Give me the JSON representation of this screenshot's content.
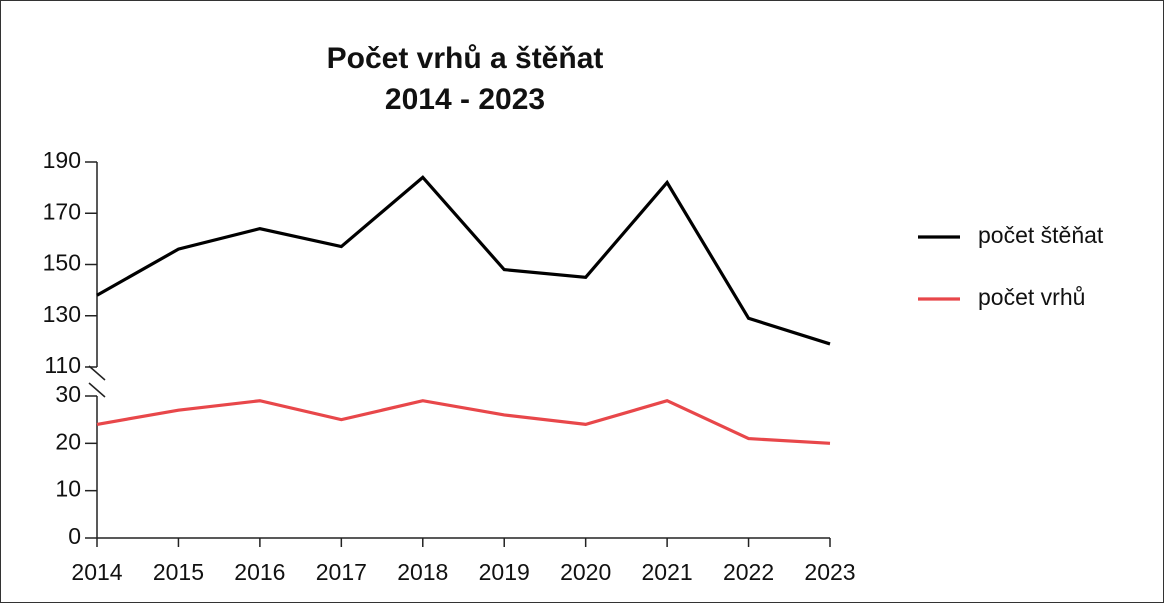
{
  "chart_data": [
    {
      "type": "line",
      "title": "Počet vrhů a štěňat",
      "subtitle": "2014 - 2023",
      "x": [
        2014,
        2015,
        2016,
        2017,
        2018,
        2019,
        2020,
        2021,
        2022,
        2023
      ],
      "series": [
        {
          "name": "počet štěňat",
          "color": "#000000",
          "values": [
            138,
            156,
            164,
            157,
            184,
            148,
            145,
            182,
            129,
            119
          ]
        }
      ],
      "xlim": [
        2014,
        2023
      ],
      "ylim": [
        110,
        190
      ],
      "yticks": [
        110,
        130,
        150,
        170,
        190
      ],
      "legend": "right"
    },
    {
      "type": "line",
      "x": [
        2014,
        2015,
        2016,
        2017,
        2018,
        2019,
        2020,
        2021,
        2022,
        2023
      ],
      "series": [
        {
          "name": "počet vrhů",
          "color": "#e8474a",
          "values": [
            24,
            27,
            29,
            25,
            29,
            26,
            24,
            29,
            21,
            20
          ]
        }
      ],
      "xlim": [
        2014,
        2023
      ],
      "ylim": [
        0,
        30
      ],
      "yticks": [
        0,
        10,
        20,
        30
      ],
      "xticks": [
        2014,
        2015,
        2016,
        2017,
        2018,
        2019,
        2020,
        2021,
        2022,
        2023
      ],
      "legend": "right"
    }
  ]
}
